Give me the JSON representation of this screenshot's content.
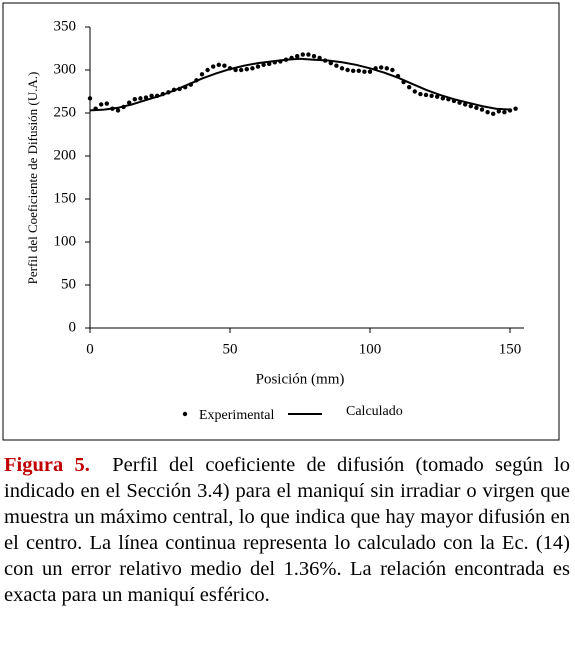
{
  "chart_data": {
    "type": "scatter-line",
    "xlabel": "Posición (mm)",
    "ylabel": "Perfil del Coeficiente de Difusión (U.A.)",
    "xlim": [
      0,
      155
    ],
    "ylim": [
      0,
      350
    ],
    "xticks": [
      0,
      50,
      100,
      150
    ],
    "yticks": [
      0,
      50,
      100,
      150,
      200,
      250,
      300,
      350
    ],
    "grid": false,
    "legend": "bottom",
    "series": [
      {
        "name": "Experimental",
        "color": "#000000",
        "style": "markers",
        "x": [
          0,
          2,
          4,
          6,
          8,
          10,
          12,
          14,
          16,
          18,
          20,
          22,
          24,
          26,
          28,
          30,
          32,
          34,
          36,
          38,
          40,
          42,
          44,
          46,
          48,
          50,
          52,
          54,
          56,
          58,
          60,
          62,
          64,
          66,
          68,
          70,
          72,
          74,
          76,
          78,
          80,
          82,
          84,
          86,
          88,
          90,
          92,
          94,
          96,
          98,
          100,
          102,
          104,
          106,
          108,
          110,
          112,
          114,
          116,
          118,
          120,
          122,
          124,
          126,
          128,
          130,
          132,
          134,
          136,
          138,
          140,
          142,
          144,
          146,
          148,
          150,
          152
        ],
        "values": [
          267,
          255,
          260,
          261,
          255,
          253,
          257,
          262,
          266,
          267,
          268,
          270,
          270,
          272,
          274,
          277,
          278,
          280,
          283,
          288,
          295,
          300,
          304,
          306,
          305,
          302,
          300,
          300,
          301,
          302,
          304,
          306,
          307,
          309,
          310,
          312,
          314,
          316,
          318,
          318,
          316,
          314,
          311,
          308,
          305,
          302,
          300,
          299,
          299,
          298,
          298,
          302,
          303,
          302,
          300,
          293,
          286,
          280,
          275,
          272,
          271,
          270,
          269,
          267,
          266,
          264,
          262,
          260,
          258,
          256,
          254,
          251,
          249,
          252,
          251,
          253,
          255
        ]
      },
      {
        "name": "Calculado",
        "color": "#000000",
        "style": "line",
        "x": [
          0,
          5,
          10,
          15,
          20,
          25,
          30,
          35,
          40,
          45,
          50,
          55,
          60,
          65,
          70,
          75,
          80,
          85,
          90,
          95,
          100,
          105,
          110,
          115,
          120,
          125,
          130,
          135,
          140,
          145,
          150
        ],
        "values": [
          253,
          254,
          256,
          260,
          265,
          270,
          276,
          283,
          290,
          296,
          301,
          305,
          308,
          310,
          312,
          313,
          312,
          311,
          309,
          306,
          302,
          297,
          291,
          284,
          277,
          271,
          266,
          262,
          258,
          255,
          254
        ]
      }
    ]
  },
  "caption": {
    "label": "Figura 5.",
    "text": "Perfil del coeficiente de difusión (tomado según lo indicado en el Sección 3.4) para el maniquí sin irradiar o virgen que muestra un máximo central, lo que indica que hay mayor difusión en el centro. La línea continua representa lo calculado con la Ec. (14) con un error relativo medio del 1.36%. La relación encontrada es exacta para un maniquí esférico."
  }
}
